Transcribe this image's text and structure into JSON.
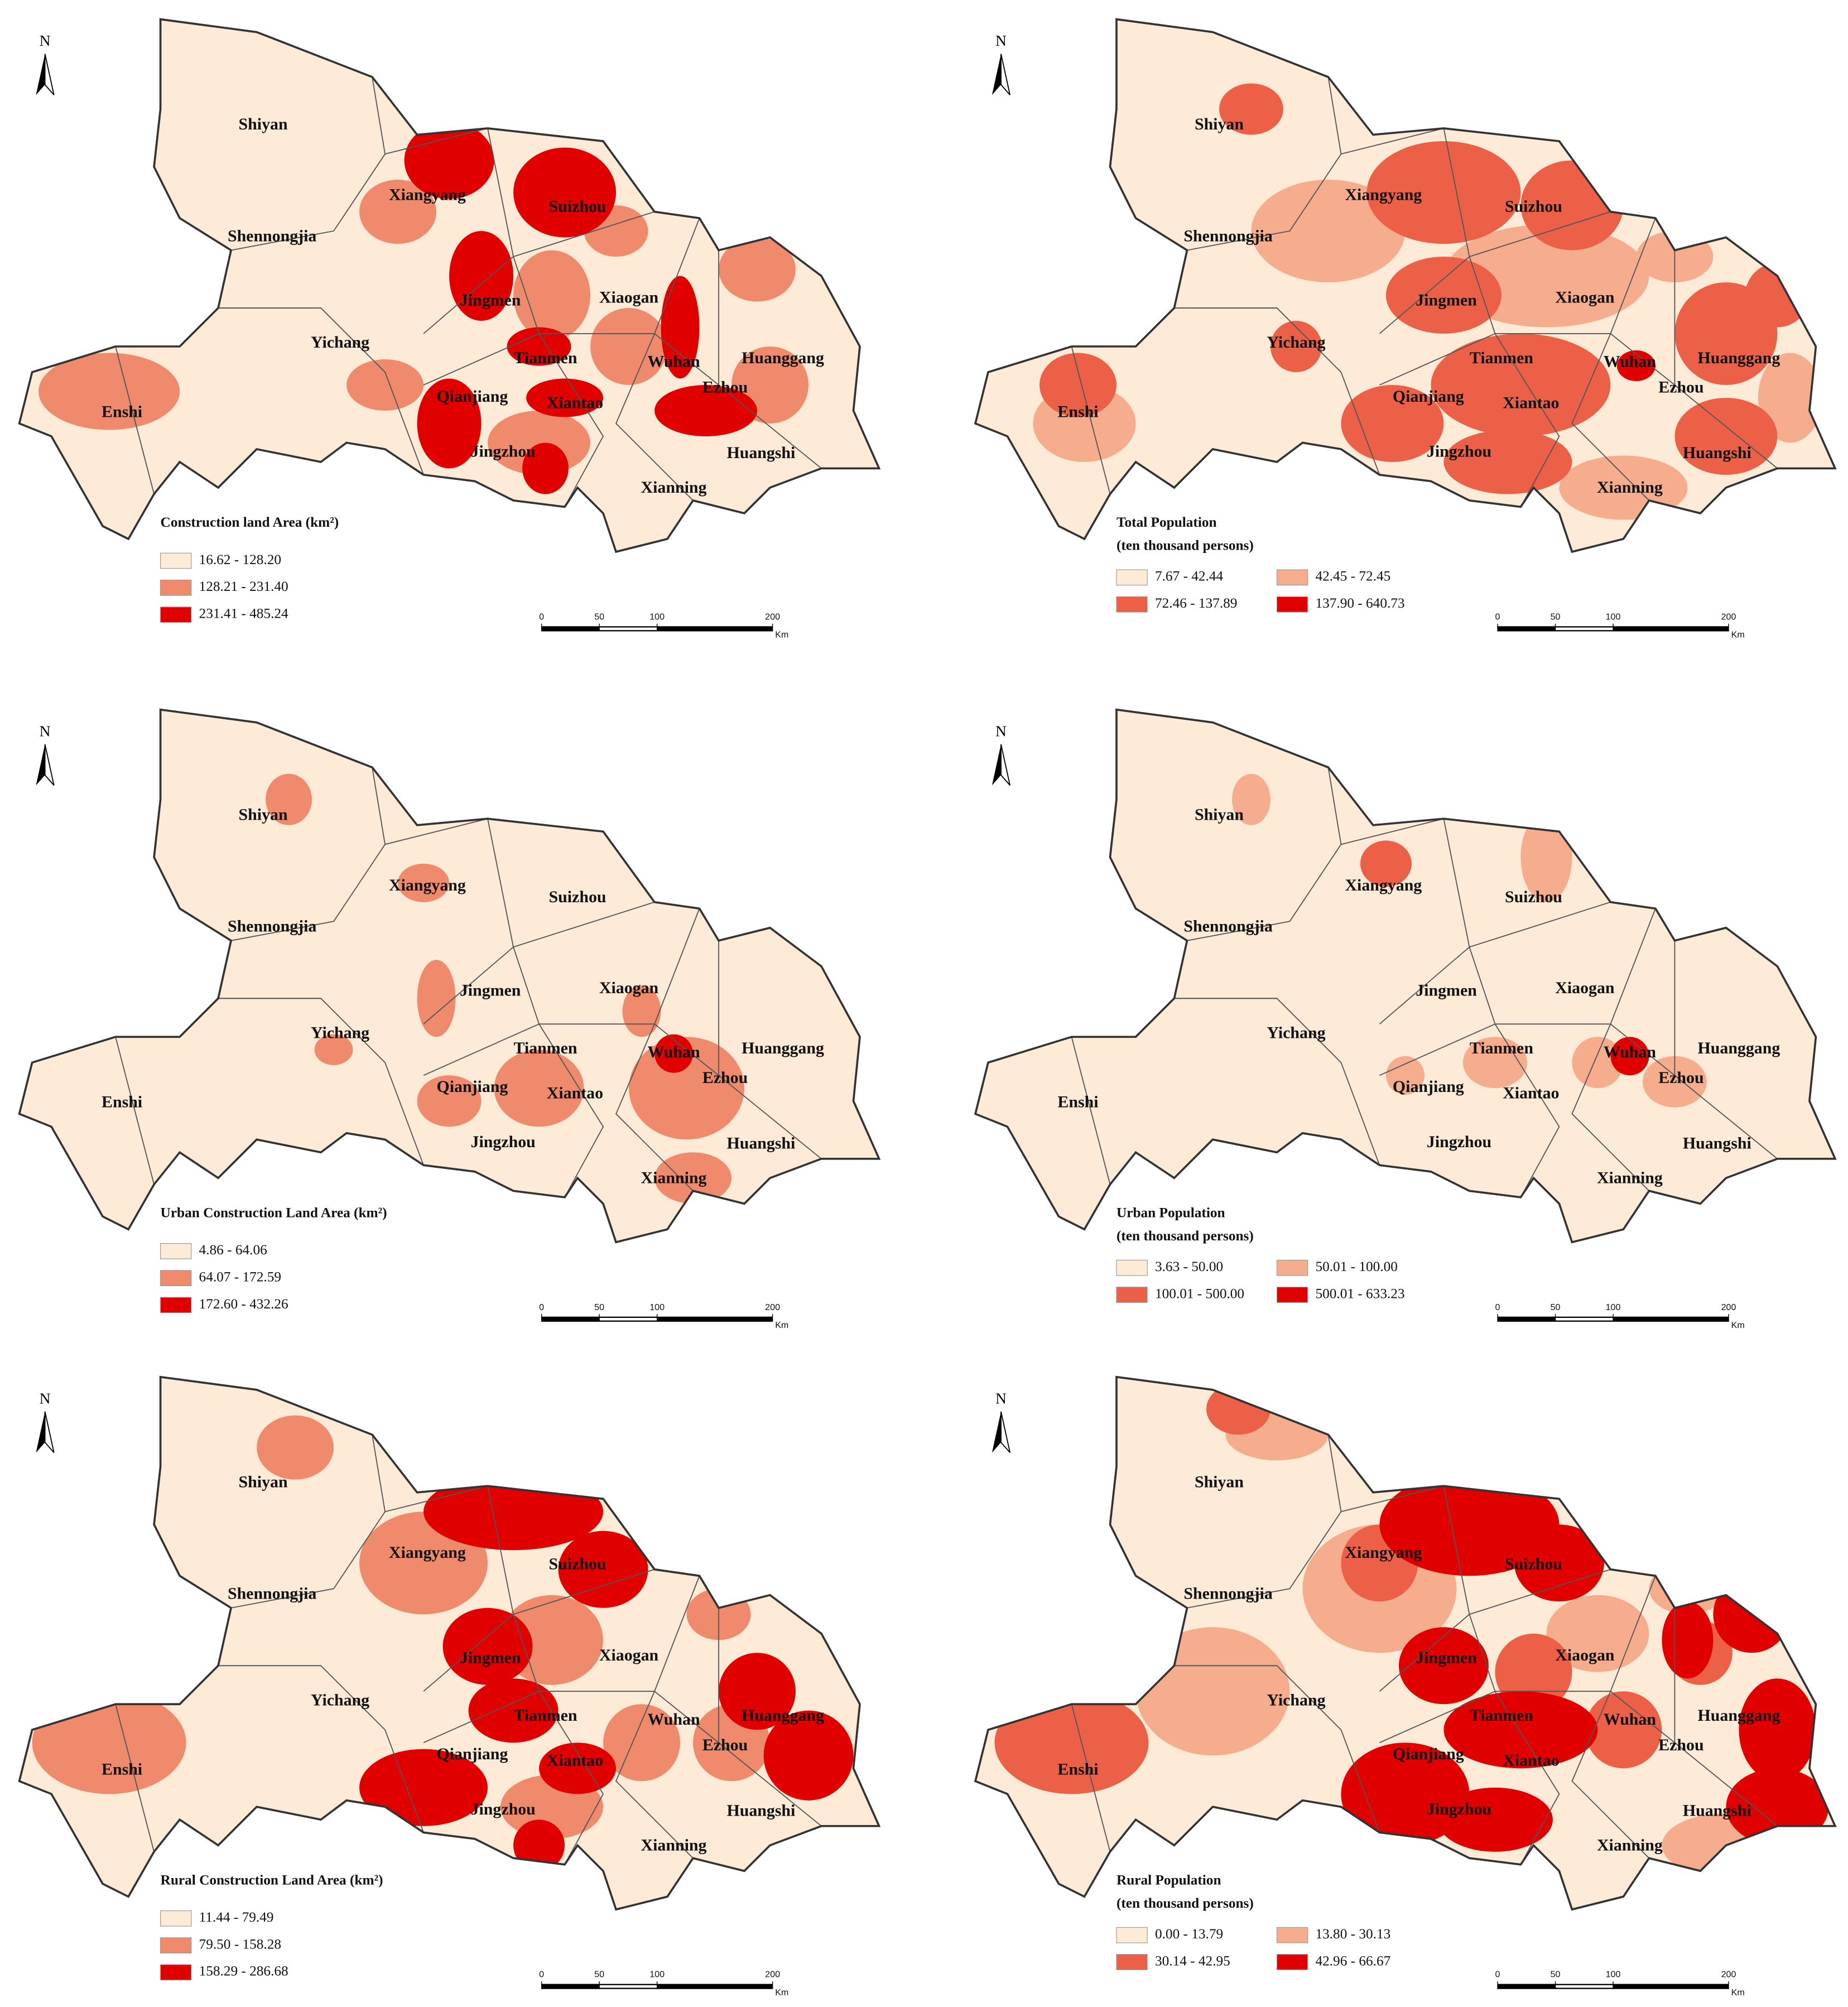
{
  "cities": [
    "Shiyan",
    "Xiangyang",
    "Suizhou",
    "Shennongjia",
    "Jingmen",
    "Xiaogan",
    "Yichang",
    "Wuhan",
    "Huanggang",
    "Tianmen",
    "Enshi",
    "Qianjiang",
    "Xiantao",
    "Ezhou",
    "Jingzhou",
    "Huangshi",
    "Xianning"
  ],
  "north": "N",
  "scale": {
    "ticks": [
      0,
      50,
      100,
      200
    ],
    "unit": "Km"
  },
  "panels": [
    {
      "title": [
        "Construction land Area (km²)"
      ],
      "legend": [
        {
          "label": "16.62 - 128.20",
          "color": "#fdebd8"
        },
        {
          "label": "128.21 - 231.40",
          "color": "#f08a6c"
        },
        {
          "label": "231.41 - 485.24",
          "color": "#e00000"
        }
      ]
    },
    {
      "title": [
        "Total Population",
        "(ten thousand persons)"
      ],
      "legend": [
        {
          "label": "7.67 - 42.44",
          "color": "#fdebd8"
        },
        {
          "label": "42.45 - 72.45",
          "color": "#f6ad8e"
        },
        {
          "label": "72.46 - 137.89",
          "color": "#ec6048"
        },
        {
          "label": "137.90 - 640.73",
          "color": "#e00000"
        }
      ]
    },
    {
      "title": [
        "Urban Construction Land Area  (km²)"
      ],
      "legend": [
        {
          "label": "4.86 - 64.06",
          "color": "#fdebd8"
        },
        {
          "label": "64.07 - 172.59",
          "color": "#f08a6c"
        },
        {
          "label": "172.60 - 432.26",
          "color": "#e00000"
        }
      ]
    },
    {
      "title": [
        "Urban Population",
        "(ten thousand persons)"
      ],
      "legend": [
        {
          "label": "3.63 - 50.00",
          "color": "#fdebd8"
        },
        {
          "label": "50.01 - 100.00",
          "color": "#f6ad8e"
        },
        {
          "label": "100.01 - 500.00",
          "color": "#ec6048"
        },
        {
          "label": "500.01 - 633.23",
          "color": "#e00000"
        }
      ]
    },
    {
      "title": [
        "Rural Construction Land Area (km²)"
      ],
      "legend": [
        {
          "label": "11.44 - 79.49",
          "color": "#fdebd8"
        },
        {
          "label": "79.50 - 158.28",
          "color": "#f08a6c"
        },
        {
          "label": "158.29 - 286.68",
          "color": "#e00000"
        }
      ]
    },
    {
      "title": [
        "Rural Population",
        "(ten thousand persons)"
      ],
      "legend": [
        {
          "label": "0.00 - 13.79",
          "color": "#fdebd8"
        },
        {
          "label": "13.80 - 30.13",
          "color": "#f6ad8e"
        },
        {
          "label": "30.14 - 42.95",
          "color": "#ec6048"
        },
        {
          "label": "42.96 - 66.67",
          "color": "#e00000"
        }
      ]
    }
  ]
}
